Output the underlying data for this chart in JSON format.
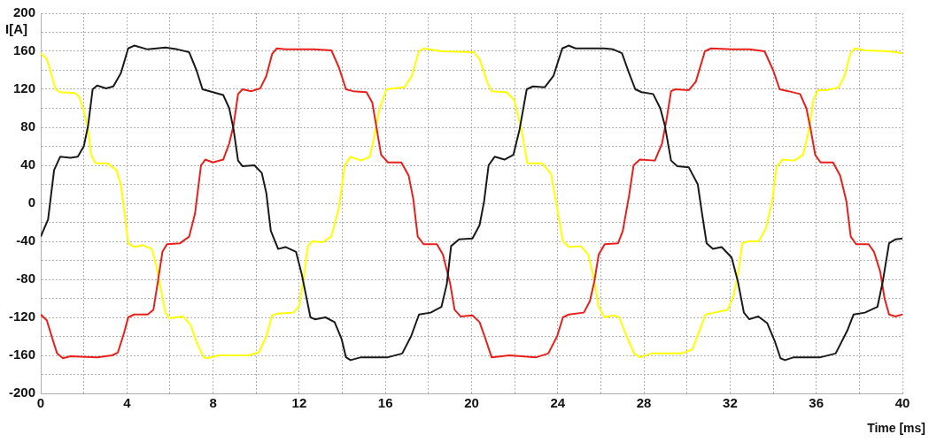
{
  "chart_data": {
    "type": "line",
    "xlabel": "Time [ms]",
    "ylabel": "I[A]",
    "xlim": [
      0,
      40
    ],
    "ylim": [
      -200,
      200
    ],
    "xticks": [
      0,
      {
        "value": 2,
        "label": null
      },
      4,
      {
        "value": 6,
        "label": null
      },
      8,
      {
        "value": 10,
        "label": null
      },
      12,
      {
        "value": 14,
        "label": null
      },
      16,
      {
        "value": 18,
        "label": null
      },
      20,
      {
        "value": 22,
        "label": null
      },
      24,
      {
        "value": 26,
        "label": null
      },
      28,
      {
        "value": 30,
        "label": null
      },
      32,
      {
        "value": 34,
        "label": null
      },
      36,
      {
        "value": 38,
        "label": null
      },
      40
    ],
    "yticks": [
      -200,
      {
        "value": -180,
        "label": null
      },
      -160,
      {
        "value": -140,
        "label": null
      },
      -120,
      {
        "value": -100,
        "label": null
      },
      -80,
      {
        "value": -60,
        "label": null
      },
      -40,
      {
        "value": -20,
        "label": null
      },
      0,
      {
        "value": 20,
        "label": null
      },
      40,
      {
        "value": 60,
        "label": null
      },
      80,
      {
        "value": 100,
        "label": null
      },
      120,
      {
        "value": 140,
        "label": null
      },
      160,
      {
        "value": 180,
        "label": null
      },
      200
    ],
    "grid": true,
    "legend": false,
    "series": [
      {
        "color": "#1a1a1a",
        "x": [
          0,
          0.34,
          0.62,
          0.9,
          1.38,
          1.72,
          2.0,
          2.2,
          2.41,
          2.62,
          3.03,
          3.37,
          3.72,
          4.06,
          4.34,
          4.96,
          5.79,
          6.34,
          6.89,
          7.23,
          7.51,
          7.99,
          8.47,
          8.75,
          8.95,
          9.16,
          9.37,
          9.92,
          10.26,
          10.47,
          10.68,
          11.02,
          11.36,
          11.85,
          12.12,
          12.52,
          12.73,
          13.22,
          13.64,
          13.97,
          14.17,
          14.38,
          14.87,
          16.12,
          16.78,
          17.19,
          17.56,
          18.1,
          18.6,
          18.85,
          19.05,
          19.42,
          20.04,
          20.37,
          20.58,
          20.79,
          21.07,
          21.53,
          21.94,
          22.23,
          22.56,
          22.85,
          23.39,
          23.8,
          24.21,
          24.5,
          24.83,
          26.16,
          26.57,
          26.98,
          27.31,
          27.6,
          27.89,
          28.43,
          28.76,
          28.97,
          29.26,
          29.55,
          30.08,
          30.5,
          30.7,
          30.91,
          31.2,
          31.61,
          32.07,
          32.36,
          32.64,
          32.89,
          33.31,
          33.72,
          34.09,
          34.34,
          34.55,
          34.96,
          36.2,
          36.9,
          37.44,
          37.73,
          38.26,
          38.84,
          39.09,
          39.38,
          39.67,
          40
        ],
        "values": [
          -35,
          -17,
          35,
          49,
          48,
          49,
          60,
          82,
          120,
          124,
          121,
          123,
          137,
          163,
          166,
          162,
          164,
          162,
          159,
          140,
          120,
          117,
          114,
          100,
          78,
          45,
          39,
          40,
          32,
          11,
          -29,
          -48,
          -46,
          -51,
          -75,
          -120,
          -122,
          -120,
          -125,
          -143,
          -162,
          -165,
          -162,
          -162,
          -158,
          -140,
          -117,
          -115,
          -109,
          -85,
          -45,
          -38,
          -37,
          -23,
          2,
          40,
          49,
          46,
          51,
          78,
          120,
          123,
          122,
          134,
          163,
          166,
          163,
          163,
          162,
          158,
          137,
          120,
          117,
          115,
          100,
          82,
          45,
          39,
          38,
          20,
          -11,
          -42,
          -48,
          -46,
          -57,
          -82,
          -115,
          -122,
          -119,
          -126,
          -146,
          -163,
          -165,
          -162,
          -162,
          -158,
          -134,
          -117,
          -115,
          -109,
          -82,
          -42,
          -38,
          -37
        ]
      },
      {
        "color": "#e8201c",
        "x": [
          0,
          0.28,
          0.55,
          0.76,
          1.03,
          1.38,
          2.62,
          3.31,
          3.58,
          3.86,
          4.06,
          4.34,
          4.96,
          5.23,
          5.44,
          5.65,
          5.86,
          6.47,
          6.89,
          7.16,
          7.44,
          7.64,
          7.99,
          8.47,
          8.75,
          8.95,
          9.16,
          9.37,
          9.78,
          10.19,
          10.47,
          10.74,
          10.95,
          11.36,
          12.11,
          12.66,
          13.49,
          13.84,
          14.17,
          14.5,
          15.12,
          15.39,
          15.6,
          15.8,
          16.12,
          16.74,
          17.08,
          17.29,
          17.5,
          17.77,
          18.39,
          18.67,
          19.01,
          19.21,
          19.49,
          20.04,
          20.37,
          20.65,
          20.93,
          21.76,
          23.0,
          23.56,
          23.97,
          24.24,
          24.52,
          25.21,
          25.49,
          25.7,
          25.9,
          26.18,
          26.8,
          27.02,
          27.31,
          27.52,
          27.81,
          28.51,
          28.84,
          29.05,
          29.26,
          29.46,
          30.08,
          30.41,
          30.83,
          31.12,
          32.07,
          32.89,
          33.6,
          34.0,
          34.3,
          34.71,
          35.25,
          35.54,
          35.74,
          35.95,
          36.2,
          36.78,
          37.11,
          37.4,
          37.6,
          37.85,
          38.43,
          38.68,
          38.97,
          39.17,
          39.38,
          39.67,
          40
        ],
        "values": [
          -117,
          -123,
          -143,
          -158,
          -163,
          -161,
          -162,
          -160,
          -157,
          -137,
          -120,
          -117,
          -117,
          -112,
          -82,
          -51,
          -43,
          -42,
          -35,
          -11,
          40,
          46,
          43,
          46,
          63,
          82,
          115,
          120,
          118,
          121,
          134,
          157,
          163,
          162,
          162,
          162,
          161,
          143,
          120,
          118,
          117,
          106,
          78,
          51,
          43,
          43,
          29,
          5,
          -35,
          -43,
          -43,
          -54,
          -85,
          -112,
          -119,
          -118,
          -125,
          -143,
          -162,
          -160,
          -162,
          -158,
          -140,
          -120,
          -117,
          -115,
          -103,
          -82,
          -54,
          -43,
          -42,
          -29,
          8,
          40,
          46,
          45,
          63,
          88,
          118,
          120,
          119,
          128,
          160,
          163,
          162,
          162,
          160,
          140,
          120,
          118,
          115,
          100,
          78,
          51,
          43,
          43,
          29,
          2,
          -35,
          -43,
          -43,
          -51,
          -72,
          -100,
          -117,
          -119,
          -117
        ]
      },
      {
        "color": "#ffff00",
        "x": [
          0,
          0.28,
          0.48,
          0.69,
          0.9,
          1.58,
          1.79,
          2.0,
          2.2,
          2.34,
          2.55,
          3.1,
          3.51,
          3.72,
          3.93,
          4.06,
          4.34,
          4.75,
          5.16,
          5.37,
          5.58,
          5.79,
          5.99,
          6.61,
          6.96,
          7.23,
          7.57,
          7.71,
          8.26,
          9.64,
          10.12,
          10.47,
          10.74,
          11.02,
          11.71,
          11.98,
          12.19,
          12.4,
          12.6,
          13.08,
          13.49,
          13.84,
          14.11,
          14.38,
          14.87,
          15.28,
          15.5,
          15.7,
          16.05,
          16.39,
          16.88,
          17.22,
          17.56,
          17.77,
          18.6,
          20.1,
          20.37,
          20.72,
          20.93,
          21.62,
          21.97,
          22.31,
          22.59,
          23.28,
          23.69,
          23.97,
          24.24,
          24.52,
          25.07,
          25.42,
          25.7,
          25.9,
          26.18,
          26.59,
          26.85,
          27.2,
          27.55,
          27.82,
          28.37,
          29.75,
          30.24,
          30.58,
          30.86,
          31.27,
          31.89,
          32.16,
          32.37,
          32.57,
          32.85,
          33.33,
          33.67,
          33.95,
          34.15,
          34.43,
          34.98,
          35.39,
          35.67,
          35.87,
          36.08,
          36.49,
          37.04,
          37.31,
          37.59,
          37.8,
          38.27,
          39.38,
          40
        ],
        "values": [
          158,
          152,
          137,
          120,
          117,
          116,
          112,
          97,
          78,
          51,
          42,
          42,
          35,
          20,
          -17,
          -42,
          -46,
          -44,
          -48,
          -66,
          -91,
          -115,
          -121,
          -119,
          -128,
          -146,
          -162,
          -163,
          -160,
          -160,
          -157,
          -140,
          -118,
          -116,
          -115,
          -109,
          -82,
          -45,
          -40,
          -41,
          -35,
          -5,
          40,
          49,
          45,
          49,
          72,
          97,
          120,
          121,
          122,
          134,
          160,
          163,
          160,
          159,
          152,
          128,
          118,
          117,
          109,
          78,
          42,
          42,
          31,
          -5,
          -40,
          -46,
          -45,
          -54,
          -82,
          -109,
          -120,
          -118,
          -120,
          -140,
          -158,
          -162,
          -158,
          -158,
          -154,
          -134,
          -117,
          -115,
          -112,
          -97,
          -75,
          -42,
          -40,
          -40,
          -26,
          2,
          38,
          46,
          45,
          51,
          78,
          109,
          119,
          119,
          122,
          134,
          158,
          163,
          161,
          160,
          158
        ]
      }
    ]
  }
}
